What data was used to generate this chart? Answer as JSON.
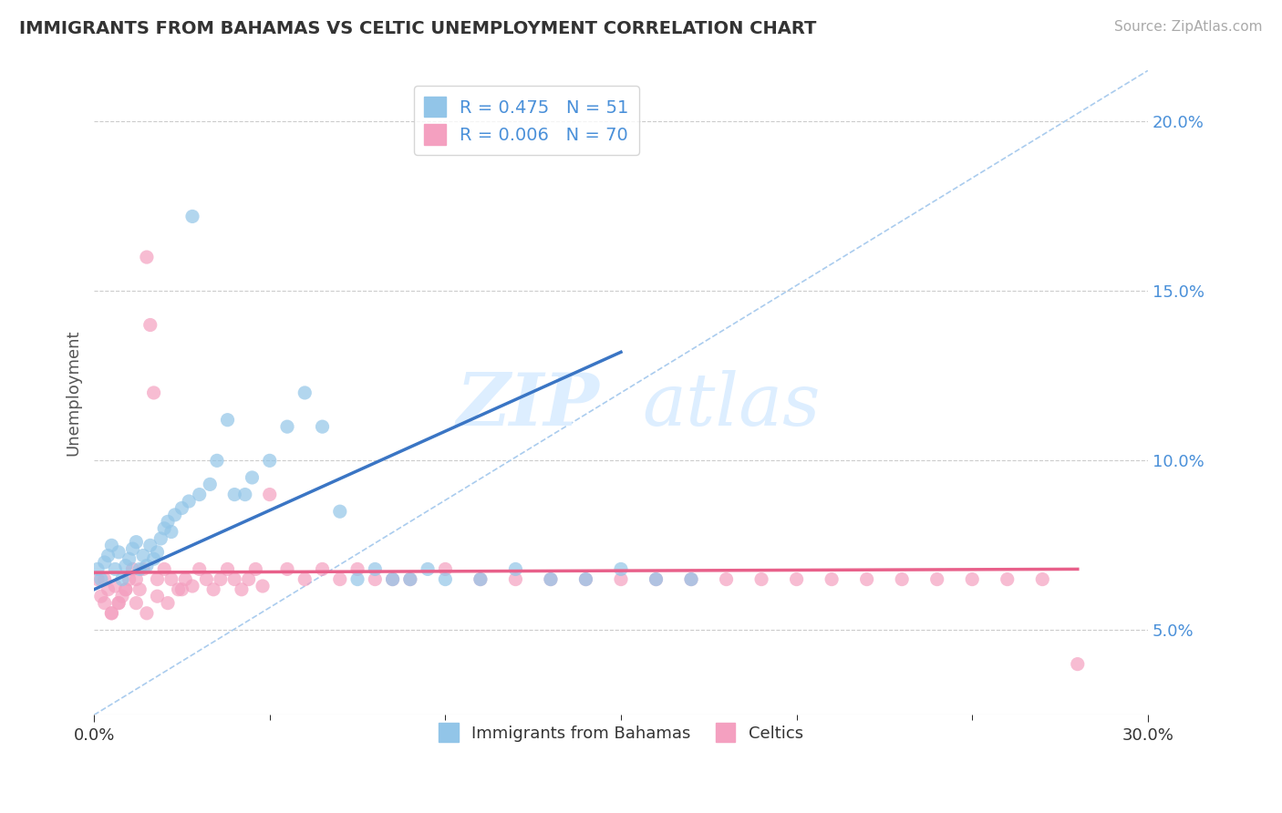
{
  "title": "IMMIGRANTS FROM BAHAMAS VS CELTIC UNEMPLOYMENT CORRELATION CHART",
  "source": "Source: ZipAtlas.com",
  "ylabel": "Unemployment",
  "legend_label1": "Immigrants from Bahamas",
  "legend_label2": "Celtics",
  "legend_R1": "R = 0.475",
  "legend_N1": "N = 51",
  "legend_R2": "R = 0.006",
  "legend_N2": "N = 70",
  "xlim": [
    0.0,
    0.3
  ],
  "ylim": [
    0.025,
    0.215
  ],
  "xticks_shown": [
    0.0,
    0.3
  ],
  "yticks": [
    0.05,
    0.1,
    0.15,
    0.2
  ],
  "color_blue": "#92C5E8",
  "color_pink": "#F4A0C0",
  "color_blue_line": "#3A75C4",
  "color_pink_line": "#E8608A",
  "color_gray_dash": "#AACCEE",
  "background": "#FFFFFF",
  "watermark_zip": "ZIP",
  "watermark_atlas": "atlas",
  "blue_scatter_x": [
    0.001,
    0.002,
    0.003,
    0.004,
    0.005,
    0.006,
    0.007,
    0.008,
    0.009,
    0.01,
    0.011,
    0.012,
    0.013,
    0.014,
    0.015,
    0.016,
    0.017,
    0.018,
    0.019,
    0.02,
    0.021,
    0.022,
    0.023,
    0.025,
    0.027,
    0.028,
    0.03,
    0.033,
    0.035,
    0.038,
    0.04,
    0.043,
    0.045,
    0.05,
    0.055,
    0.06,
    0.065,
    0.07,
    0.075,
    0.08,
    0.085,
    0.09,
    0.095,
    0.1,
    0.11,
    0.12,
    0.13,
    0.14,
    0.15,
    0.16,
    0.17
  ],
  "blue_scatter_y": [
    0.068,
    0.065,
    0.07,
    0.072,
    0.075,
    0.068,
    0.073,
    0.065,
    0.069,
    0.071,
    0.074,
    0.076,
    0.068,
    0.072,
    0.069,
    0.075,
    0.071,
    0.073,
    0.077,
    0.08,
    0.082,
    0.079,
    0.084,
    0.086,
    0.088,
    0.172,
    0.09,
    0.093,
    0.1,
    0.112,
    0.09,
    0.09,
    0.095,
    0.1,
    0.11,
    0.12,
    0.11,
    0.085,
    0.065,
    0.068,
    0.065,
    0.065,
    0.068,
    0.065,
    0.065,
    0.068,
    0.065,
    0.065,
    0.068,
    0.065,
    0.065
  ],
  "pink_scatter_x": [
    0.001,
    0.002,
    0.003,
    0.004,
    0.005,
    0.006,
    0.007,
    0.008,
    0.009,
    0.01,
    0.011,
    0.012,
    0.013,
    0.014,
    0.015,
    0.016,
    0.017,
    0.018,
    0.02,
    0.022,
    0.024,
    0.026,
    0.028,
    0.03,
    0.032,
    0.034,
    0.036,
    0.038,
    0.04,
    0.042,
    0.044,
    0.046,
    0.048,
    0.05,
    0.055,
    0.06,
    0.065,
    0.07,
    0.075,
    0.08,
    0.085,
    0.09,
    0.1,
    0.11,
    0.12,
    0.13,
    0.14,
    0.15,
    0.16,
    0.17,
    0.18,
    0.19,
    0.2,
    0.21,
    0.22,
    0.23,
    0.24,
    0.25,
    0.26,
    0.27,
    0.003,
    0.005,
    0.007,
    0.009,
    0.012,
    0.015,
    0.018,
    0.021,
    0.025,
    0.28
  ],
  "pink_scatter_y": [
    0.065,
    0.06,
    0.058,
    0.062,
    0.055,
    0.063,
    0.058,
    0.06,
    0.062,
    0.065,
    0.068,
    0.065,
    0.062,
    0.068,
    0.16,
    0.14,
    0.12,
    0.065,
    0.068,
    0.065,
    0.062,
    0.065,
    0.063,
    0.068,
    0.065,
    0.062,
    0.065,
    0.068,
    0.065,
    0.062,
    0.065,
    0.068,
    0.063,
    0.09,
    0.068,
    0.065,
    0.068,
    0.065,
    0.068,
    0.065,
    0.065,
    0.065,
    0.068,
    0.065,
    0.065,
    0.065,
    0.065,
    0.065,
    0.065,
    0.065,
    0.065,
    0.065,
    0.065,
    0.065,
    0.065,
    0.065,
    0.065,
    0.065,
    0.065,
    0.065,
    0.065,
    0.055,
    0.058,
    0.062,
    0.058,
    0.055,
    0.06,
    0.058,
    0.062,
    0.04
  ],
  "blue_trend_x": [
    0.0,
    0.15
  ],
  "blue_trend_y": [
    0.062,
    0.132
  ],
  "pink_trend_x": [
    0.0,
    0.28
  ],
  "pink_trend_y": [
    0.067,
    0.068
  ]
}
